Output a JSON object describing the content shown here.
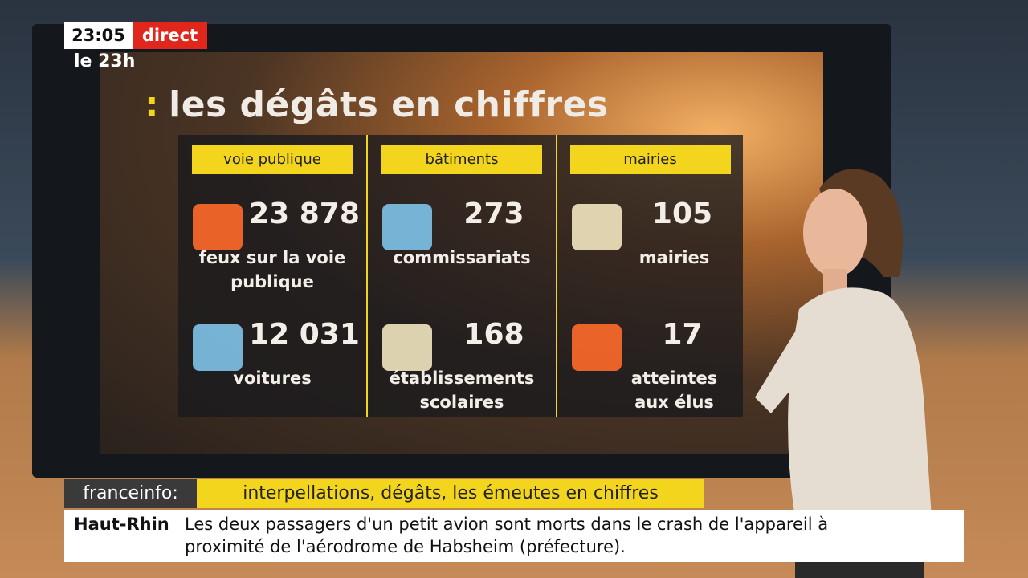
{
  "header": {
    "time": "23:05",
    "live": "direct",
    "show": "le 23h"
  },
  "board": {
    "title_marker": ":",
    "title": "les dégâts en chiffres",
    "columns": [
      {
        "heading": "voie publique",
        "items": [
          {
            "value": "23 878",
            "label": "feux sur la voie publique"
          },
          {
            "value": "12 031",
            "label": "voitures"
          }
        ]
      },
      {
        "heading": "bâtiments",
        "items": [
          {
            "value": "273",
            "label": "commissariats"
          },
          {
            "value": "168",
            "label": "établissements scolaires"
          }
        ]
      },
      {
        "heading": "mairies",
        "items": [
          {
            "value": "105",
            "label": "mairies"
          },
          {
            "value": "17",
            "label": "atteintes aux élus"
          }
        ]
      }
    ]
  },
  "banner": {
    "brand": "franceinfo:",
    "headline": "interpellations, dégâts, les émeutes en chiffres"
  },
  "ticker": {
    "place": "Haut-Rhin",
    "text": "Les deux passagers d'un petit avion sont morts dans le crash de l'appareil à proximité de l'aérodrome de Habsheim (préfecture)."
  }
}
